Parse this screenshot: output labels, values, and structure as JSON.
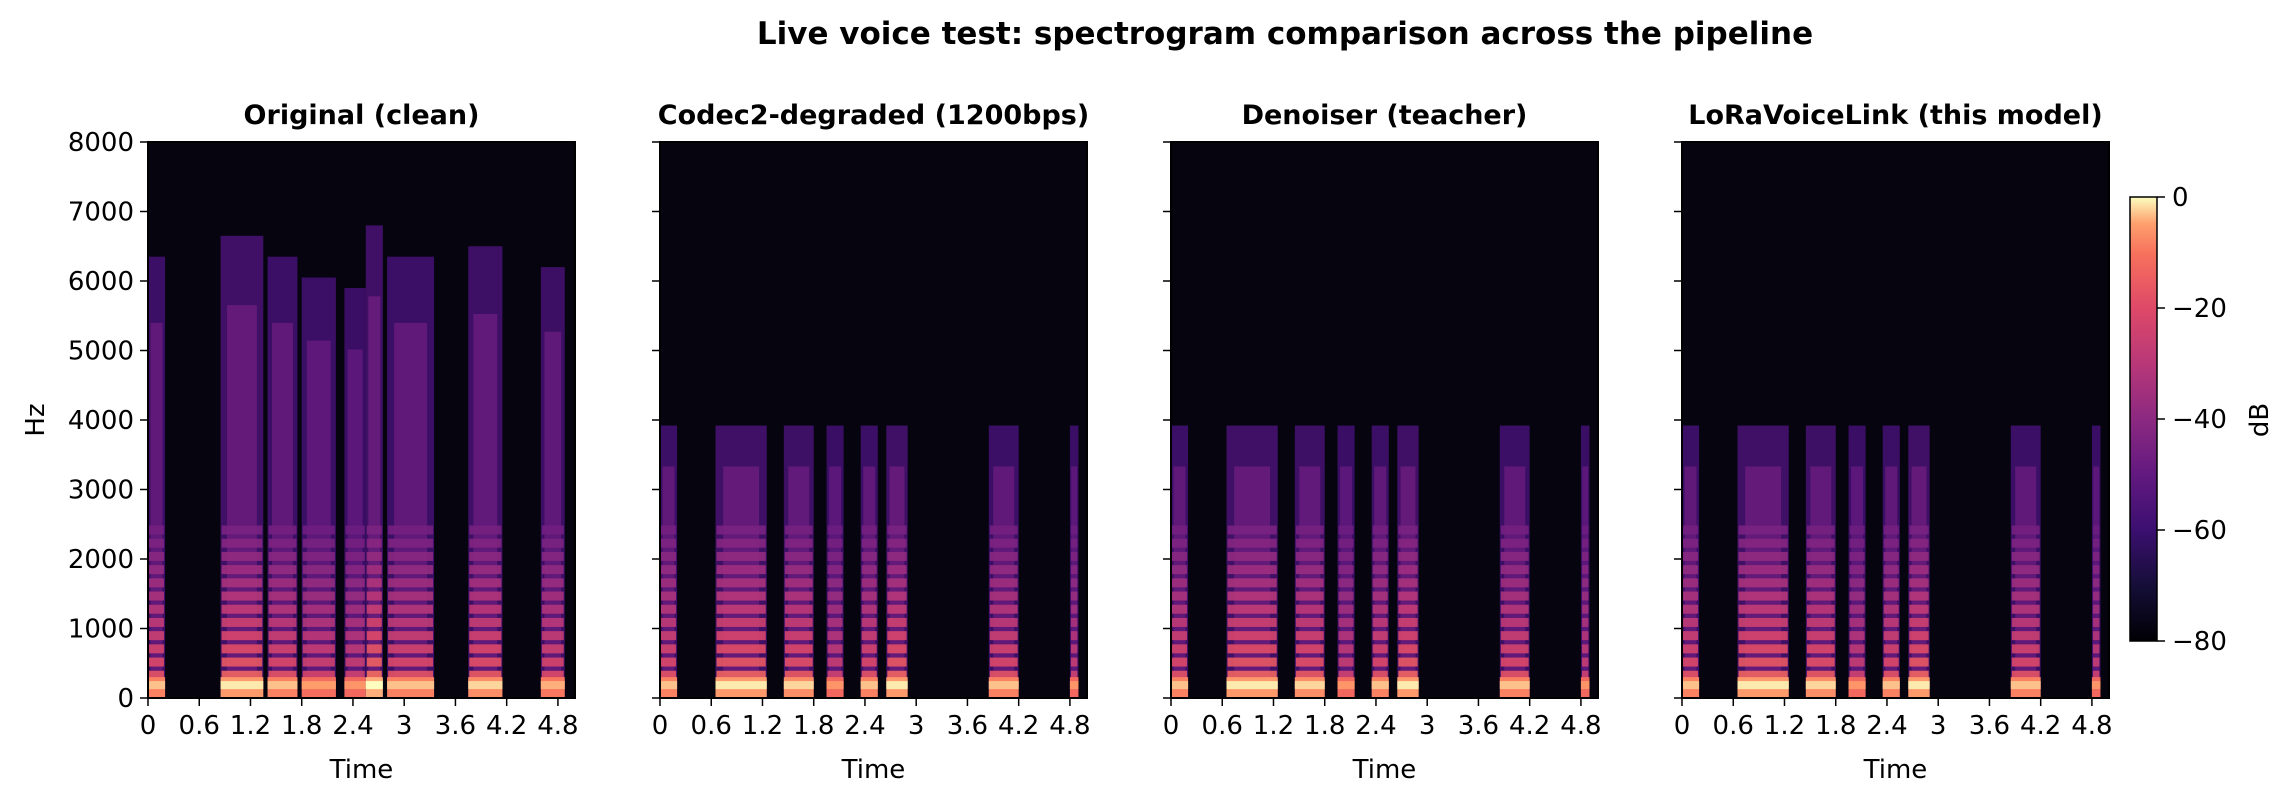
{
  "figure": {
    "title": "Live voice test: spectrogram comparison across the pipeline"
  },
  "chart_data": [
    {
      "type": "heatmap",
      "title": "Original (clean)",
      "xlabel": "Time",
      "ylabel": "Hz",
      "xlim": [
        0,
        5.0
      ],
      "ylim": [
        0,
        8000
      ],
      "x_ticks": [
        "0",
        "0.6",
        "1.2",
        "1.8",
        "2.4",
        "3",
        "3.6",
        "4.2",
        "4.8"
      ],
      "y_ticks": [
        "0",
        "1000",
        "2000",
        "3000",
        "4000",
        "5000",
        "6000",
        "7000",
        "8000"
      ],
      "bandwidth_hz": 8000,
      "segments": [
        [
          0.0,
          0.2,
          0.85
        ],
        [
          0.85,
          1.35,
          0.95
        ],
        [
          1.4,
          1.75,
          0.85
        ],
        [
          1.8,
          2.2,
          0.75
        ],
        [
          2.3,
          2.55,
          0.7
        ],
        [
          2.55,
          2.75,
          1.0
        ],
        [
          2.8,
          3.35,
          0.85
        ],
        [
          3.75,
          4.15,
          0.9
        ],
        [
          4.6,
          4.88,
          0.8
        ]
      ]
    },
    {
      "type": "heatmap",
      "title": "Codec2-degraded (1200bps)",
      "xlabel": "Time",
      "ylabel": "",
      "xlim": [
        0,
        5.0
      ],
      "ylim": [
        0,
        8000
      ],
      "x_ticks": [
        "0",
        "0.6",
        "1.2",
        "1.8",
        "2.4",
        "3",
        "3.6",
        "4.2",
        "4.8"
      ],
      "bandwidth_hz": 4000,
      "segments": [
        [
          0.0,
          0.2,
          0.85
        ],
        [
          0.65,
          1.25,
          0.95
        ],
        [
          1.45,
          1.8,
          0.9
        ],
        [
          1.95,
          2.15,
          0.7
        ],
        [
          2.35,
          2.55,
          0.85
        ],
        [
          2.65,
          2.9,
          0.95
        ],
        [
          3.85,
          4.2,
          0.85
        ],
        [
          4.8,
          4.9,
          0.7
        ]
      ]
    },
    {
      "type": "heatmap",
      "title": "Denoiser (teacher)",
      "xlabel": "Time",
      "ylabel": "",
      "xlim": [
        0,
        5.0
      ],
      "ylim": [
        0,
        8000
      ],
      "x_ticks": [
        "0",
        "0.6",
        "1.2",
        "1.8",
        "2.4",
        "3",
        "3.6",
        "4.2",
        "4.8"
      ],
      "bandwidth_hz": 4000,
      "segments": [
        [
          0.0,
          0.2,
          0.85
        ],
        [
          0.65,
          1.25,
          0.95
        ],
        [
          1.45,
          1.8,
          0.9
        ],
        [
          1.95,
          2.15,
          0.7
        ],
        [
          2.35,
          2.55,
          0.85
        ],
        [
          2.65,
          2.9,
          0.95
        ],
        [
          3.85,
          4.2,
          0.85
        ],
        [
          4.8,
          4.9,
          0.7
        ]
      ]
    },
    {
      "type": "heatmap",
      "title": "LoRaVoiceLink (this model)",
      "xlabel": "Time",
      "ylabel": "",
      "xlim": [
        0,
        5.0
      ],
      "ylim": [
        0,
        8000
      ],
      "x_ticks": [
        "0",
        "0.6",
        "1.2",
        "1.8",
        "2.4",
        "3",
        "3.6",
        "4.2",
        "4.8"
      ],
      "bandwidth_hz": 4000,
      "segments": [
        [
          0.0,
          0.2,
          0.85
        ],
        [
          0.65,
          1.25,
          0.95
        ],
        [
          1.45,
          1.8,
          0.9
        ],
        [
          1.95,
          2.15,
          0.7
        ],
        [
          2.35,
          2.55,
          0.85
        ],
        [
          2.65,
          2.9,
          0.95
        ],
        [
          3.85,
          4.2,
          0.85
        ],
        [
          4.8,
          4.9,
          0.7
        ]
      ]
    }
  ],
  "colorbar": {
    "label": "dB",
    "range": [
      -80,
      0
    ],
    "ticks": [
      "0",
      "−20",
      "−40",
      "−60",
      "−80"
    ],
    "colormap": "magma"
  }
}
